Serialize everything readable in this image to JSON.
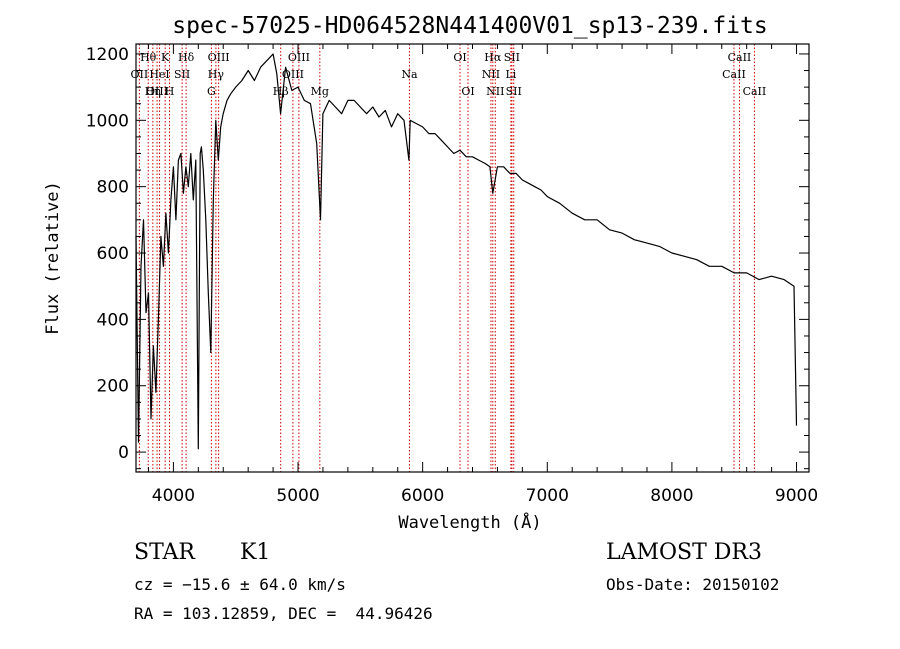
{
  "chart_data": {
    "type": "line",
    "title": "spec-57025-HD064528N441400V01_sp13-239.fits",
    "xlabel": "Wavelength (Å)",
    "ylabel": "Flux (relative)",
    "xlim": [
      3700,
      9100
    ],
    "ylim": [
      -60,
      1230
    ],
    "xticks": [
      "4000",
      "5000",
      "6000",
      "7000",
      "8000",
      "9000"
    ],
    "xtick_values": [
      4000,
      5000,
      6000,
      7000,
      8000,
      9000
    ],
    "yticks": [
      "0",
      "200",
      "400",
      "600",
      "800",
      "1000",
      "1200"
    ],
    "ytick_values": [
      0,
      200,
      400,
      600,
      800,
      1000,
      1200
    ],
    "series": [
      {
        "name": "flux",
        "x": [
          3700,
          3720,
          3740,
          3760,
          3780,
          3800,
          3820,
          3840,
          3860,
          3880,
          3900,
          3920,
          3940,
          3960,
          3980,
          4000,
          4020,
          4040,
          4060,
          4080,
          4100,
          4120,
          4140,
          4160,
          4180,
          4200,
          4215,
          4225,
          4240,
          4260,
          4280,
          4300,
          4320,
          4340,
          4360,
          4380,
          4400,
          4430,
          4460,
          4500,
          4550,
          4600,
          4650,
          4700,
          4750,
          4800,
          4830,
          4860,
          4900,
          4950,
          5000,
          5050,
          5100,
          5150,
          5180,
          5200,
          5250,
          5300,
          5350,
          5400,
          5450,
          5500,
          5550,
          5600,
          5650,
          5700,
          5750,
          5800,
          5850,
          5890,
          5900,
          5950,
          6000,
          6050,
          6100,
          6150,
          6200,
          6250,
          6300,
          6350,
          6400,
          6450,
          6500,
          6540,
          6563,
          6600,
          6650,
          6700,
          6750,
          6800,
          6850,
          6900,
          6950,
          7000,
          7100,
          7200,
          7300,
          7400,
          7500,
          7600,
          7700,
          7800,
          7900,
          8000,
          8100,
          8200,
          8300,
          8400,
          8500,
          8600,
          8700,
          8800,
          8900,
          8980,
          9000
        ],
        "y": [
          650,
          30,
          560,
          700,
          420,
          480,
          100,
          320,
          180,
          400,
          650,
          560,
          720,
          600,
          760,
          860,
          700,
          880,
          900,
          780,
          860,
          800,
          900,
          760,
          880,
          10,
          900,
          920,
          850,
          700,
          480,
          300,
          760,
          1000,
          880,
          980,
          1020,
          1060,
          1080,
          1100,
          1120,
          1150,
          1120,
          1160,
          1180,
          1200,
          1140,
          1020,
          1160,
          1090,
          1100,
          1060,
          1050,
          930,
          700,
          1020,
          1060,
          1040,
          1020,
          1060,
          1060,
          1040,
          1020,
          1040,
          1010,
          1030,
          980,
          1020,
          1000,
          880,
          1000,
          990,
          980,
          960,
          960,
          940,
          920,
          900,
          910,
          890,
          890,
          880,
          870,
          860,
          780,
          860,
          860,
          840,
          840,
          820,
          810,
          800,
          790,
          770,
          750,
          720,
          700,
          700,
          670,
          660,
          640,
          630,
          620,
          600,
          590,
          580,
          560,
          560,
          540,
          540,
          520,
          530,
          520,
          500,
          80
        ]
      }
    ],
    "line_ids": [
      {
        "label": "Hθ",
        "x": 3798,
        "row": 1
      },
      {
        "label": "K",
        "x": 3934,
        "row": 1
      },
      {
        "label": "Hδ",
        "x": 4102,
        "row": 1
      },
      {
        "label": "OII",
        "x": 3727,
        "row": 2
      },
      {
        "label": "HeI",
        "x": 3889,
        "row": 2
      },
      {
        "label": "SII",
        "x": 4070,
        "row": 2
      },
      {
        "label": "OIII",
        "x": 3869,
        "row": 3
      },
      {
        "label": "Hη",
        "x": 3835,
        "row": 3
      },
      {
        "label": "H",
        "x": 3969,
        "row": 3
      },
      {
        "label": "OIII",
        "x": 4363,
        "row": 1
      },
      {
        "label": "Hγ",
        "x": 4341,
        "row": 2
      },
      {
        "label": "G",
        "x": 4305,
        "row": 3
      },
      {
        "label": "OIII",
        "x": 5007,
        "row": 1
      },
      {
        "label": "OIII",
        "x": 4959,
        "row": 2
      },
      {
        "label": "Hβ",
        "x": 4861,
        "row": 3
      },
      {
        "label": "Mg",
        "x": 5175,
        "row": 3
      },
      {
        "label": "Na",
        "x": 5894,
        "row": 2
      },
      {
        "label": "OI",
        "x": 6300,
        "row": 1
      },
      {
        "label": "OI",
        "x": 6364,
        "row": 3
      },
      {
        "label": "Hα",
        "x": 6563,
        "row": 1
      },
      {
        "label": "SII",
        "x": 6716,
        "row": 1
      },
      {
        "label": "NII",
        "x": 6548,
        "row": 2
      },
      {
        "label": "Li",
        "x": 6708,
        "row": 2
      },
      {
        "label": "NII",
        "x": 6583,
        "row": 3
      },
      {
        "label": "SII",
        "x": 6731,
        "row": 3
      },
      {
        "label": "CaII",
        "x": 8542,
        "row": 1
      },
      {
        "label": "CaII",
        "x": 8498,
        "row": 2
      },
      {
        "label": "CaII",
        "x": 8662,
        "row": 3
      }
    ]
  },
  "info": {
    "object_type": "STAR",
    "subclass": "K1",
    "survey": "LAMOST DR3",
    "cz": "cz = −15.6 ± 64.0 km/s",
    "obs_date": "Obs-Date: 20150102",
    "coords": "RA = 103.12859, DEC =  44.96426"
  },
  "colors": {
    "spectrum": "#000000",
    "line_markers": "#cc0000",
    "frame": "#000000"
  }
}
